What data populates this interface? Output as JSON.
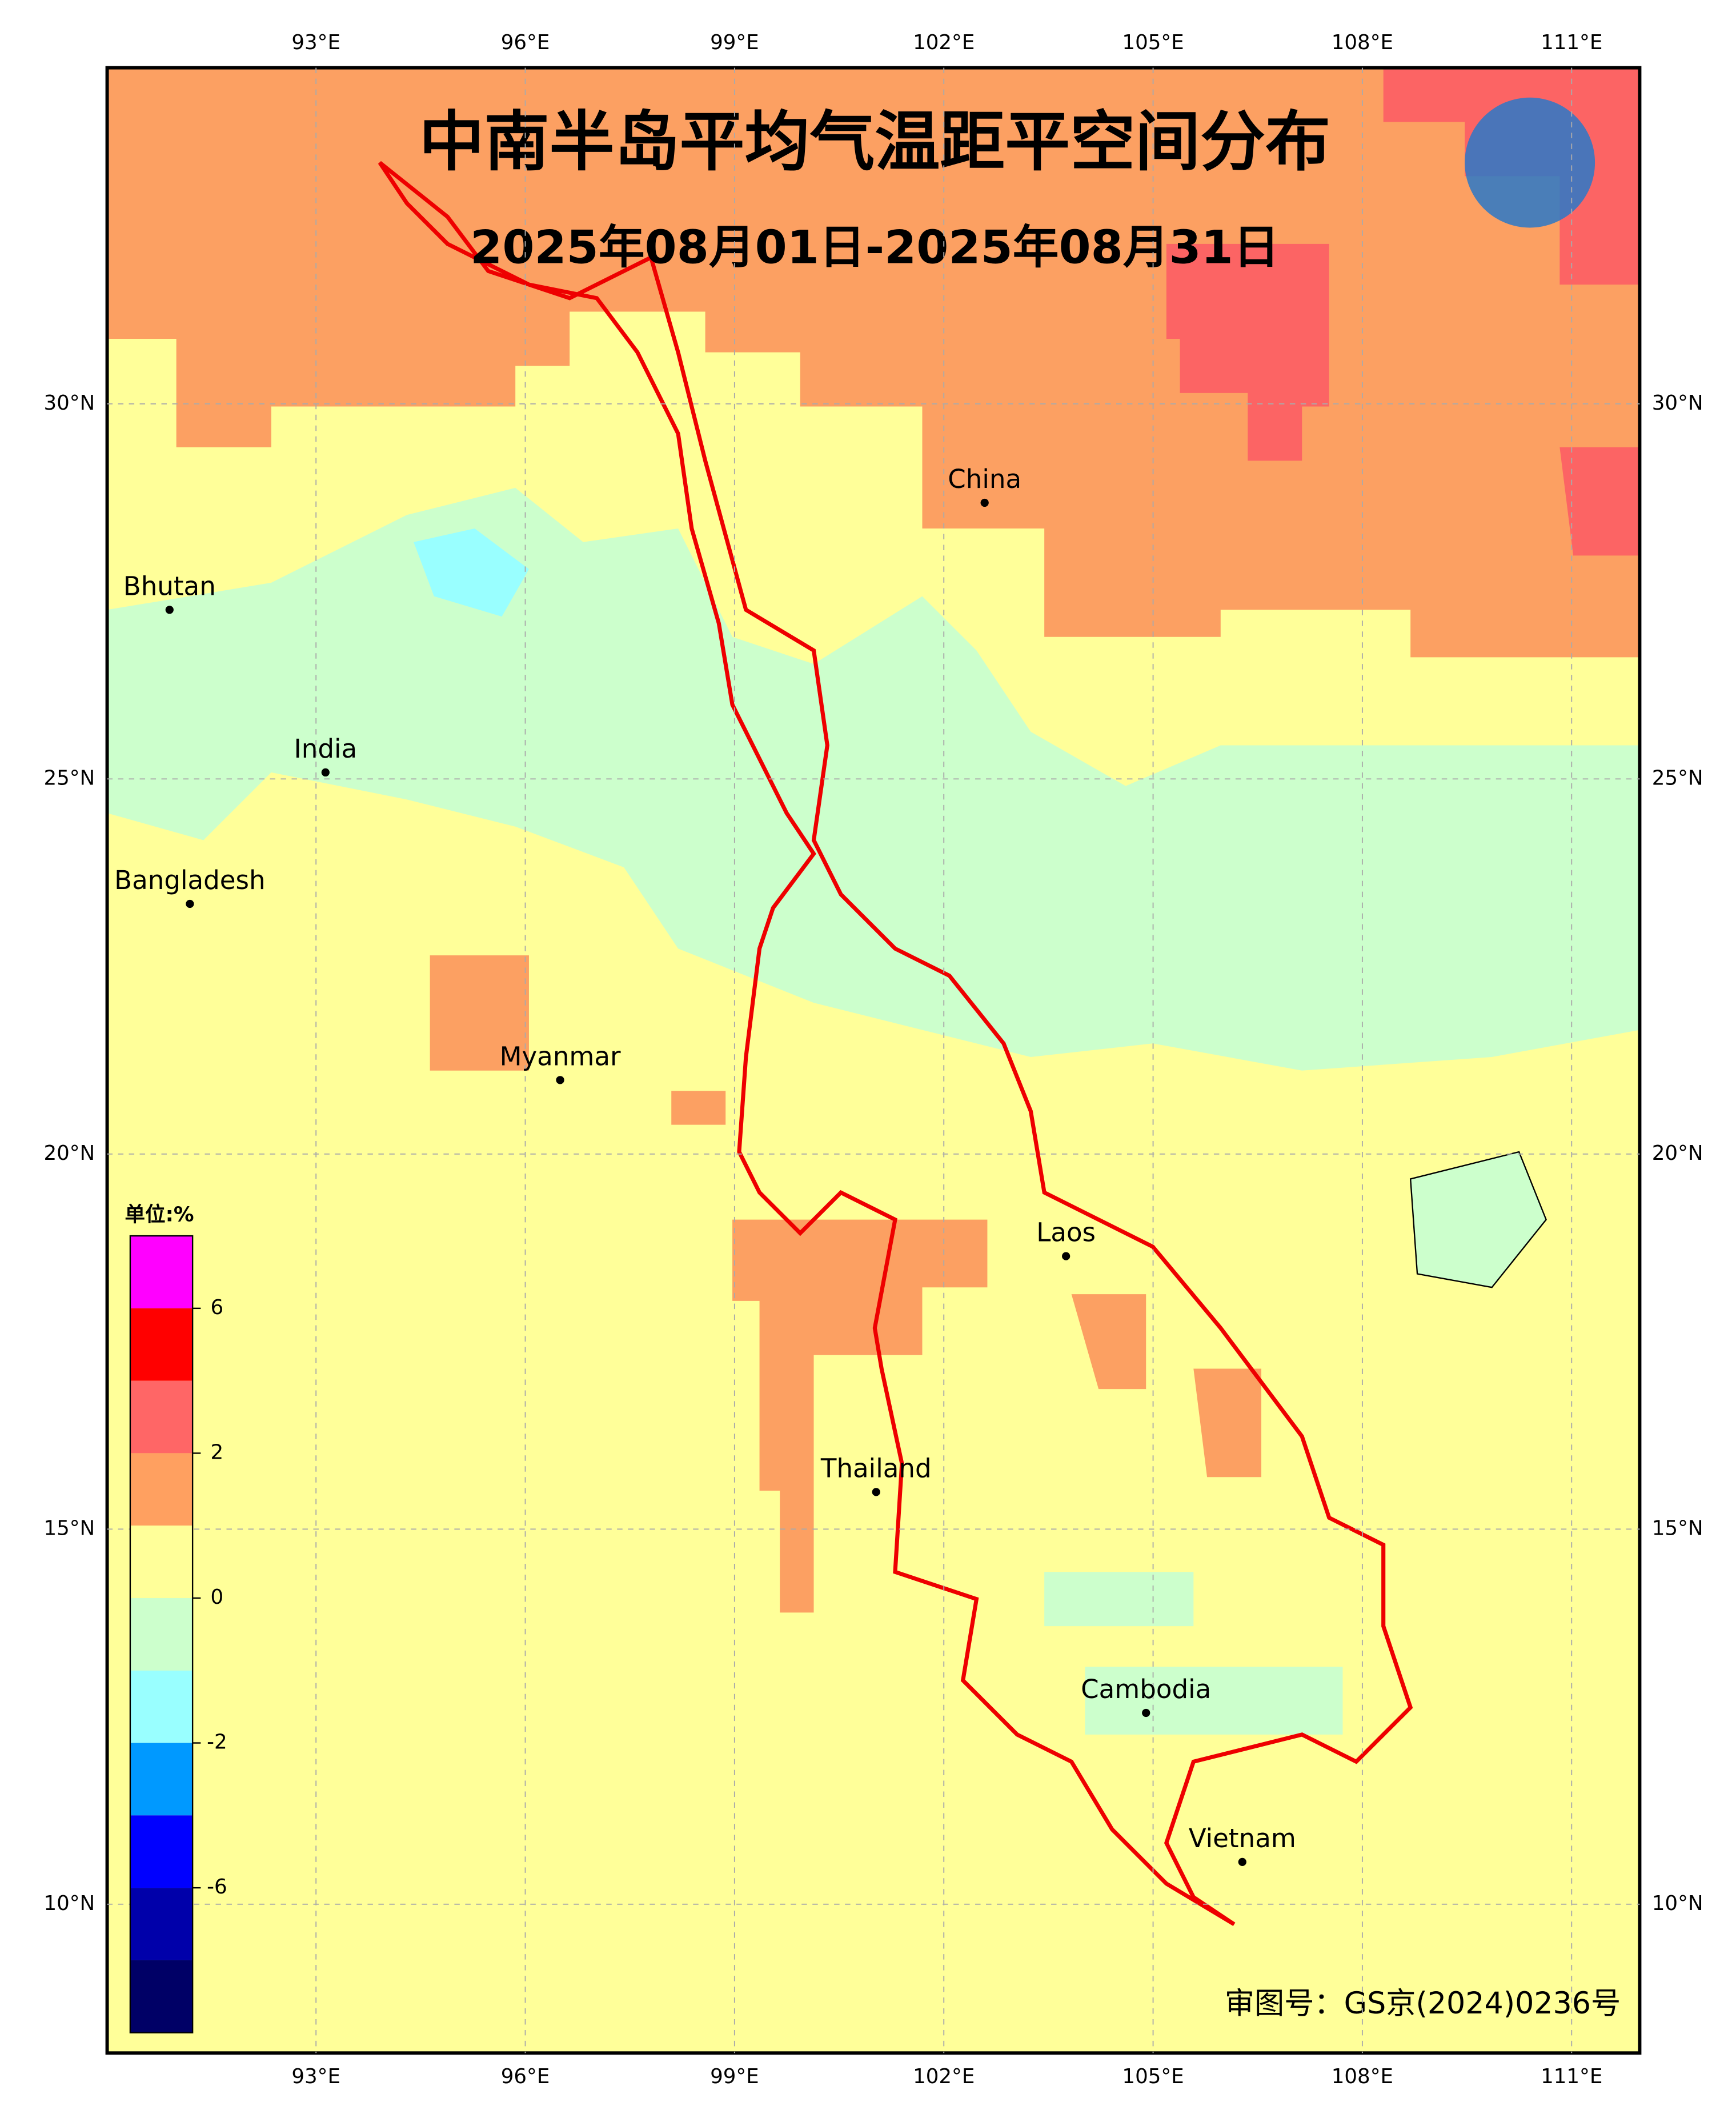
{
  "map": {
    "title": "中南半岛平均气温距平空间分布",
    "subtitle": "2025年08月01日-2025年08月31日",
    "lon_ticks": [
      "93°E",
      "96°E",
      "99°E",
      "102°E",
      "105°E",
      "108°E",
      "111°E"
    ],
    "lat_ticks": [
      "30°N",
      "25°N",
      "20°N",
      "15°N",
      "10°N"
    ],
    "places": [
      "China",
      "Bhutan",
      "India",
      "Bangladesh",
      "Myanmar",
      "Thailand",
      "Laos",
      "Cambodia",
      "Vietnam"
    ],
    "legend": {
      "unit": "单位:%",
      "labels": [
        "6",
        "2",
        "0",
        "-2",
        "-6"
      ]
    },
    "approval": "审图号：GS京(2024)0236号"
  }
}
